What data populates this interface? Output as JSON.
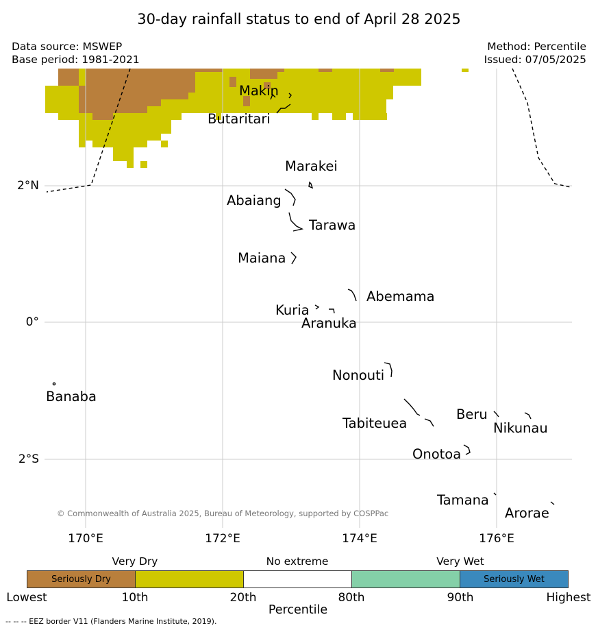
{
  "title": "30-day rainfall status to end of April 28 2025",
  "header": {
    "source_line1": "Data source: MSWEP",
    "source_line2": "Base period: 1981-2021",
    "method_line1": "Method: Percentile",
    "method_line2": "Issued: 07/05/2025"
  },
  "map": {
    "lon_labels": [
      "170°E",
      "172°E",
      "174°E",
      "176°E"
    ],
    "lat_labels": [
      "2°N",
      "0°",
      "2°S"
    ],
    "places": {
      "makin": "Makin",
      "butaritari": "Butaritari",
      "marakei": "Marakei",
      "abaiang": "Abaiang",
      "tarawa": "Tarawa",
      "maiana": "Maiana",
      "abemama": "Abemama",
      "kuria": "Kuria",
      "aranuka": "Aranuka",
      "nonouti": "Nonouti",
      "banaba": "Banaba",
      "tabiteuea": "Tabiteuea",
      "beru": "Beru",
      "nikunau": "Nikunau",
      "onotoa": "Onotoa",
      "tamana": "Tamana",
      "arorae": "Arorae"
    },
    "copyright": "© Commonwealth of Australia 2025, Bureau of Meteorology, supported by COSPPac"
  },
  "colors": {
    "seriously_dry": "#b97f3c",
    "very_dry": "#cfc800",
    "no_extreme": "#ffffff",
    "very_wet": "#84d0a8",
    "seriously_wet": "#3a89bd"
  },
  "legend": {
    "groups": {
      "very_dry": "Very Dry",
      "no_extreme": "No extreme",
      "very_wet": "Very Wet"
    },
    "boxes": {
      "seriously_dry": "Seriously Dry",
      "seriously_wet": "Seriously Wet"
    },
    "ticks": [
      "Lowest",
      "10th",
      "20th",
      "80th",
      "90th",
      "Highest"
    ],
    "axis_label": "Percentile"
  },
  "footnote": "--  --  -- EEZ border V11 (Flanders Marine Institute, 2019)."
}
